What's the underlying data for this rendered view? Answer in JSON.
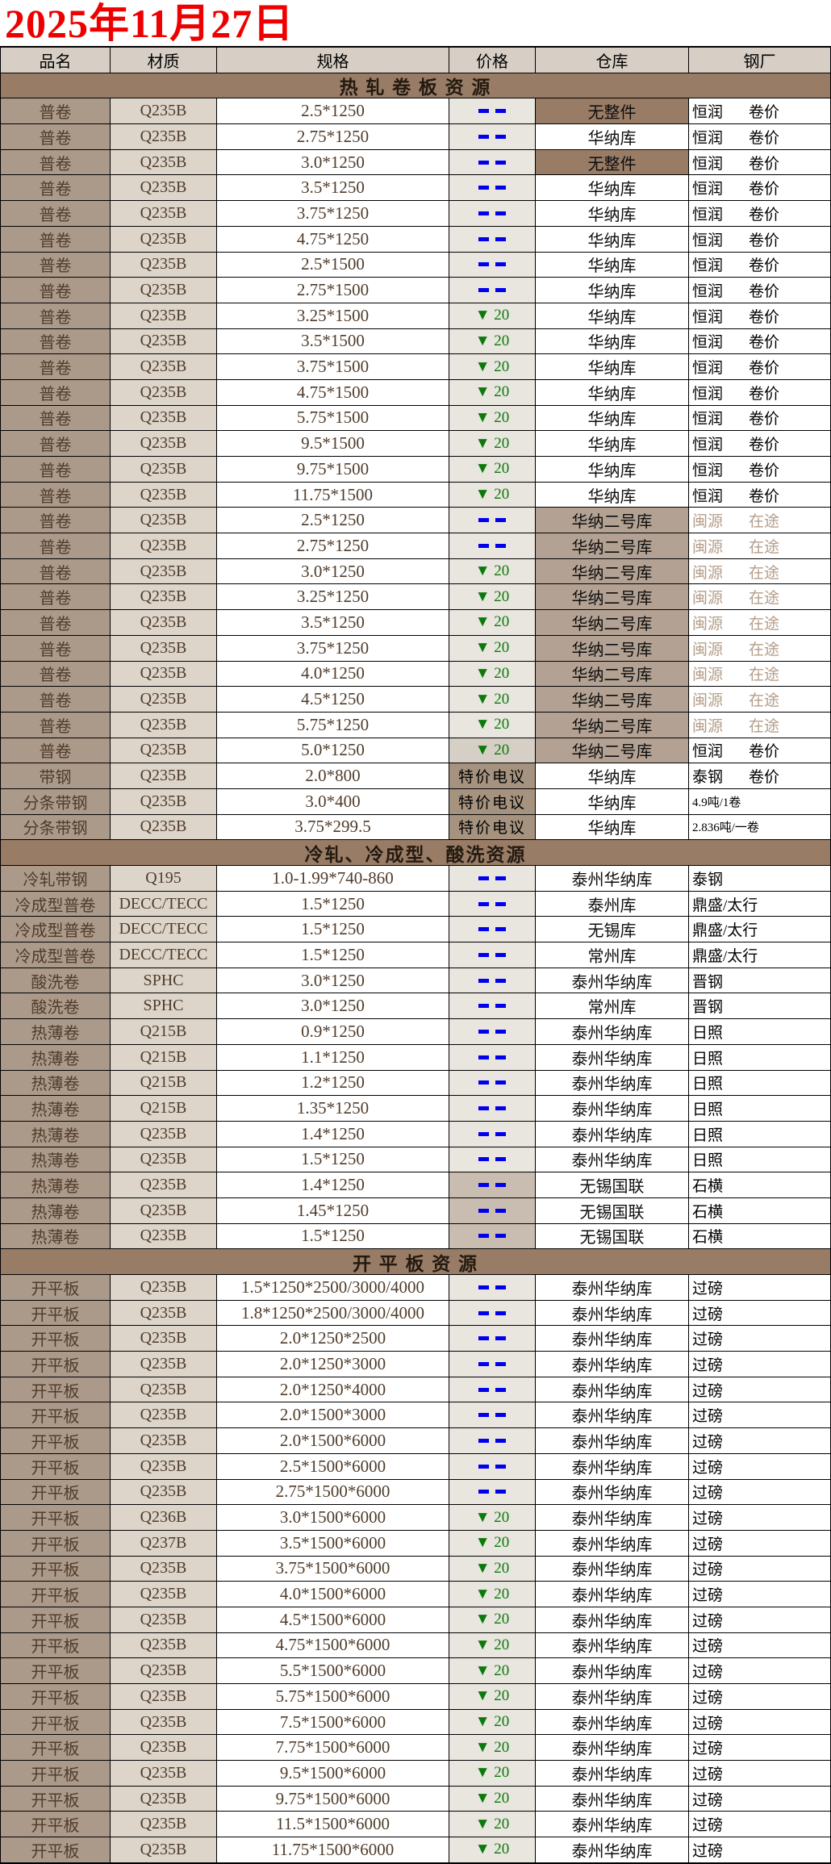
{
  "title": "2025年11月27日",
  "columns": [
    "品名",
    "材质",
    "规格",
    "价格",
    "仓库",
    "钢厂"
  ],
  "colors": {
    "title_red": "#ee0000",
    "border": "#000000",
    "header_bg": "#d7cfc5",
    "section_bg": "#997c66",
    "name_bg": "#ab998a",
    "mat_bg": "#ddd5ca",
    "spec_bg": "#ffffff",
    "price_light": "#e9e5df",
    "price_tan": "#c9bcb0",
    "price_tan2": "#d6cfc6",
    "price_brown": "#a6937f",
    "wh_white": "#ffffff",
    "wh_brown2": "#b3a293",
    "wh_dark": "#997c66",
    "text_brown": "#4f3c2b",
    "text_black": "#0d0d0d",
    "mill_black": "#000000",
    "mill_light": "#b49e8a",
    "price_blue": "#0000ee",
    "price_green": "#0a7a0a"
  },
  "row_fields": [
    "name",
    "material",
    "spec",
    "price_text",
    "price_style",
    "price_bg",
    "warehouse",
    "warehouse_bg",
    "mill",
    "mill_right",
    "mill_color",
    "mill_small"
  ],
  "sections": [
    {
      "header": "热 轧 卷 板 资 源",
      "rows": [
        [
          "普卷",
          "Q235B",
          "2.5*1250",
          "--",
          "dash",
          "light",
          "无整件",
          "dark",
          "恒润",
          "卷价",
          "black",
          0
        ],
        [
          "普卷",
          "Q235B",
          "2.75*1250",
          "--",
          "dash",
          "light",
          "华纳库",
          "white",
          "恒润",
          "卷价",
          "black",
          0
        ],
        [
          "普卷",
          "Q235B",
          "3.0*1250",
          "--",
          "dash",
          "light",
          "无整件",
          "dark",
          "恒润",
          "卷价",
          "black",
          0
        ],
        [
          "普卷",
          "Q235B",
          "3.5*1250",
          "--",
          "dash",
          "light",
          "华纳库",
          "white",
          "恒润",
          "卷价",
          "black",
          0
        ],
        [
          "普卷",
          "Q235B",
          "3.75*1250",
          "--",
          "dash",
          "light",
          "华纳库",
          "white",
          "恒润",
          "卷价",
          "black",
          0
        ],
        [
          "普卷",
          "Q235B",
          "4.75*1250",
          "--",
          "dash",
          "light",
          "华纳库",
          "white",
          "恒润",
          "卷价",
          "black",
          0
        ],
        [
          "普卷",
          "Q235B",
          "2.5*1500",
          "--",
          "dash",
          "light",
          "华纳库",
          "white",
          "恒润",
          "卷价",
          "black",
          0
        ],
        [
          "普卷",
          "Q235B",
          "2.75*1500",
          "--",
          "dash",
          "light",
          "华纳库",
          "white",
          "恒润",
          "卷价",
          "black",
          0
        ],
        [
          "普卷",
          "Q235B",
          "3.25*1500",
          "▼ 20",
          "down",
          "light",
          "华纳库",
          "white",
          "恒润",
          "卷价",
          "black",
          0
        ],
        [
          "普卷",
          "Q235B",
          "3.5*1500",
          "▼ 20",
          "down",
          "light",
          "华纳库",
          "white",
          "恒润",
          "卷价",
          "black",
          0
        ],
        [
          "普卷",
          "Q235B",
          "3.75*1500",
          "▼ 20",
          "down",
          "light",
          "华纳库",
          "white",
          "恒润",
          "卷价",
          "black",
          0
        ],
        [
          "普卷",
          "Q235B",
          "4.75*1500",
          "▼ 20",
          "down",
          "light",
          "华纳库",
          "white",
          "恒润",
          "卷价",
          "black",
          0
        ],
        [
          "普卷",
          "Q235B",
          "5.75*1500",
          "▼ 20",
          "down",
          "light",
          "华纳库",
          "white",
          "恒润",
          "卷价",
          "black",
          0
        ],
        [
          "普卷",
          "Q235B",
          "9.5*1500",
          "▼ 20",
          "down",
          "light",
          "华纳库",
          "white",
          "恒润",
          "卷价",
          "black",
          0
        ],
        [
          "普卷",
          "Q235B",
          "9.75*1500",
          "▼ 20",
          "down",
          "light",
          "华纳库",
          "white",
          "恒润",
          "卷价",
          "black",
          0
        ],
        [
          "普卷",
          "Q235B",
          "11.75*1500",
          "▼ 20",
          "down",
          "light",
          "华纳库",
          "white",
          "恒润",
          "卷价",
          "black",
          0
        ],
        [
          "普卷",
          "Q235B",
          "2.5*1250",
          "--",
          "dash",
          "light",
          "华纳二号库",
          "brown2",
          "闽源",
          "在途",
          "light",
          0
        ],
        [
          "普卷",
          "Q235B",
          "2.75*1250",
          "--",
          "dash",
          "light",
          "华纳二号库",
          "brown2",
          "闽源",
          "在途",
          "light",
          0
        ],
        [
          "普卷",
          "Q235B",
          "3.0*1250",
          "▼ 20",
          "down",
          "light",
          "华纳二号库",
          "brown2",
          "闽源",
          "在途",
          "light",
          0
        ],
        [
          "普卷",
          "Q235B",
          "3.25*1250",
          "▼ 20",
          "down",
          "light",
          "华纳二号库",
          "brown2",
          "闽源",
          "在途",
          "light",
          0
        ],
        [
          "普卷",
          "Q235B",
          "3.5*1250",
          "▼ 20",
          "down",
          "light",
          "华纳二号库",
          "brown2",
          "闽源",
          "在途",
          "light",
          0
        ],
        [
          "普卷",
          "Q235B",
          "3.75*1250",
          "▼ 20",
          "down",
          "light",
          "华纳二号库",
          "brown2",
          "闽源",
          "在途",
          "light",
          0
        ],
        [
          "普卷",
          "Q235B",
          "4.0*1250",
          "▼ 20",
          "down",
          "light",
          "华纳二号库",
          "brown2",
          "闽源",
          "在途",
          "light",
          0
        ],
        [
          "普卷",
          "Q235B",
          "4.5*1250",
          "▼ 20",
          "down",
          "light",
          "华纳二号库",
          "brown2",
          "闽源",
          "在途",
          "light",
          0
        ],
        [
          "普卷",
          "Q235B",
          "5.75*1250",
          "▼ 20",
          "down",
          "light",
          "华纳二号库",
          "brown2",
          "闽源",
          "在途",
          "light",
          0
        ],
        [
          "普卷",
          "Q235B",
          "5.0*1250",
          "▼ 20",
          "down",
          "tan2",
          "华纳二号库",
          "brown2",
          "恒润",
          "卷价",
          "black",
          0
        ],
        [
          "带钢",
          "Q235B",
          "2.0*800",
          "特价电议",
          "call",
          "brown",
          "华纳库",
          "white",
          "泰钢",
          "卷价",
          "black",
          0
        ],
        [
          "分条带钢",
          "Q235B",
          "3.0*400",
          "特价电议",
          "call",
          "brown",
          "华纳库",
          "white",
          "4.9吨/1卷",
          "",
          "black",
          1
        ],
        [
          "分条带钢",
          "Q235B",
          "3.75*299.5",
          "特价电议",
          "call",
          "brown",
          "华纳库",
          "white",
          "2.836吨/一卷",
          "",
          "black",
          1
        ]
      ]
    },
    {
      "header": "冷轧、冷成型、酸洗资源",
      "rows": [
        [
          "冷轧带钢",
          "Q195",
          "1.0-1.99*740-860",
          "--",
          "dash",
          "light",
          "泰州华纳库",
          "white",
          "泰钢",
          "",
          "black",
          0
        ],
        [
          "冷成型普卷",
          "DECC/TECC",
          "1.5*1250",
          "--",
          "dash",
          "light",
          "泰州库",
          "white",
          "鼎盛/太行",
          "",
          "black",
          0
        ],
        [
          "冷成型普卷",
          "DECC/TECC",
          "1.5*1250",
          "--",
          "dash",
          "light",
          "无锡库",
          "white",
          "鼎盛/太行",
          "",
          "black",
          0
        ],
        [
          "冷成型普卷",
          "DECC/TECC",
          "1.5*1250",
          "--",
          "dash",
          "light",
          "常州库",
          "white",
          "鼎盛/太行",
          "",
          "black",
          0
        ],
        [
          "酸洗卷",
          "SPHC",
          "3.0*1250",
          "--",
          "dash",
          "light",
          "泰州华纳库",
          "white",
          "晋钢",
          "",
          "black",
          0
        ],
        [
          "酸洗卷",
          "SPHC",
          "3.0*1250",
          "--",
          "dash",
          "light",
          "常州库",
          "white",
          "晋钢",
          "",
          "black",
          0
        ],
        [
          "热薄卷",
          "Q215B",
          "0.9*1250",
          "--",
          "dash",
          "light",
          "泰州华纳库",
          "white",
          "日照",
          "",
          "black",
          0
        ],
        [
          "热薄卷",
          "Q215B",
          "1.1*1250",
          "--",
          "dash",
          "light",
          "泰州华纳库",
          "white",
          "日照",
          "",
          "black",
          0
        ],
        [
          "热薄卷",
          "Q215B",
          "1.2*1250",
          "--",
          "dash",
          "light",
          "泰州华纳库",
          "white",
          "日照",
          "",
          "black",
          0
        ],
        [
          "热薄卷",
          "Q215B",
          "1.35*1250",
          "--",
          "dash",
          "light",
          "泰州华纳库",
          "white",
          "日照",
          "",
          "black",
          0
        ],
        [
          "热薄卷",
          "Q235B",
          "1.4*1250",
          "--",
          "dash",
          "light",
          "泰州华纳库",
          "white",
          "日照",
          "",
          "black",
          0
        ],
        [
          "热薄卷",
          "Q235B",
          "1.5*1250",
          "--",
          "dash",
          "light",
          "泰州华纳库",
          "white",
          "日照",
          "",
          "black",
          0
        ],
        [
          "热薄卷",
          "Q235B",
          "1.4*1250",
          "--",
          "dash",
          "tan",
          "无锡国联",
          "white",
          "石横",
          "",
          "black",
          0
        ],
        [
          "热薄卷",
          "Q235B",
          "1.45*1250",
          "--",
          "dash",
          "tan",
          "无锡国联",
          "white",
          "石横",
          "",
          "black",
          0
        ],
        [
          "热薄卷",
          "Q235B",
          "1.5*1250",
          "--",
          "dash",
          "tan",
          "无锡国联",
          "white",
          "石横",
          "",
          "black",
          0
        ]
      ]
    },
    {
      "header": "开 平 板 资 源",
      "rows": [
        [
          "开平板",
          "Q235B",
          "1.5*1250*2500/3000/4000",
          "--",
          "dash",
          "light",
          "泰州华纳库",
          "white",
          "过磅",
          "",
          "black",
          0
        ],
        [
          "开平板",
          "Q235B",
          "1.8*1250*2500/3000/4000",
          "--",
          "dash",
          "light",
          "泰州华纳库",
          "white",
          "过磅",
          "",
          "black",
          0
        ],
        [
          "开平板",
          "Q235B",
          "2.0*1250*2500",
          "--",
          "dash",
          "light",
          "泰州华纳库",
          "white",
          "过磅",
          "",
          "black",
          0
        ],
        [
          "开平板",
          "Q235B",
          "2.0*1250*3000",
          "--",
          "dash",
          "light",
          "泰州华纳库",
          "white",
          "过磅",
          "",
          "black",
          0
        ],
        [
          "开平板",
          "Q235B",
          "2.0*1250*4000",
          "--",
          "dash",
          "light",
          "泰州华纳库",
          "white",
          "过磅",
          "",
          "black",
          0
        ],
        [
          "开平板",
          "Q235B",
          "2.0*1500*3000",
          "--",
          "dash",
          "light",
          "泰州华纳库",
          "white",
          "过磅",
          "",
          "black",
          0
        ],
        [
          "开平板",
          "Q235B",
          "2.0*1500*6000",
          "--",
          "dash",
          "light",
          "泰州华纳库",
          "white",
          "过磅",
          "",
          "black",
          0
        ],
        [
          "开平板",
          "Q235B",
          "2.5*1500*6000",
          "--",
          "dash",
          "light",
          "泰州华纳库",
          "white",
          "过磅",
          "",
          "black",
          0
        ],
        [
          "开平板",
          "Q235B",
          "2.75*1500*6000",
          "--",
          "dash",
          "light",
          "泰州华纳库",
          "white",
          "过磅",
          "",
          "black",
          0
        ],
        [
          "开平板",
          "Q236B",
          "3.0*1500*6000",
          "▼ 20",
          "down",
          "light",
          "泰州华纳库",
          "white",
          "过磅",
          "",
          "black",
          0
        ],
        [
          "开平板",
          "Q237B",
          "3.5*1500*6000",
          "▼ 20",
          "down",
          "light",
          "泰州华纳库",
          "white",
          "过磅",
          "",
          "black",
          0
        ],
        [
          "开平板",
          "Q235B",
          "3.75*1500*6000",
          "▼ 20",
          "down",
          "light",
          "泰州华纳库",
          "white",
          "过磅",
          "",
          "black",
          0
        ],
        [
          "开平板",
          "Q235B",
          "4.0*1500*6000",
          "▼ 20",
          "down",
          "light",
          "泰州华纳库",
          "white",
          "过磅",
          "",
          "black",
          0
        ],
        [
          "开平板",
          "Q235B",
          "4.5*1500*6000",
          "▼ 20",
          "down",
          "light",
          "泰州华纳库",
          "white",
          "过磅",
          "",
          "black",
          0
        ],
        [
          "开平板",
          "Q235B",
          "4.75*1500*6000",
          "▼ 20",
          "down",
          "light",
          "泰州华纳库",
          "white",
          "过磅",
          "",
          "black",
          0
        ],
        [
          "开平板",
          "Q235B",
          "5.5*1500*6000",
          "▼ 20",
          "down",
          "light",
          "泰州华纳库",
          "white",
          "过磅",
          "",
          "black",
          0
        ],
        [
          "开平板",
          "Q235B",
          "5.75*1500*6000",
          "▼ 20",
          "down",
          "light",
          "泰州华纳库",
          "white",
          "过磅",
          "",
          "black",
          0
        ],
        [
          "开平板",
          "Q235B",
          "7.5*1500*6000",
          "▼ 20",
          "down",
          "light",
          "泰州华纳库",
          "white",
          "过磅",
          "",
          "black",
          0
        ],
        [
          "开平板",
          "Q235B",
          "7.75*1500*6000",
          "▼ 20",
          "down",
          "light",
          "泰州华纳库",
          "white",
          "过磅",
          "",
          "black",
          0
        ],
        [
          "开平板",
          "Q235B",
          "9.5*1500*6000",
          "▼ 20",
          "down",
          "light",
          "泰州华纳库",
          "white",
          "过磅",
          "",
          "black",
          0
        ],
        [
          "开平板",
          "Q235B",
          "9.75*1500*6000",
          "▼ 20",
          "down",
          "light",
          "泰州华纳库",
          "white",
          "过磅",
          "",
          "black",
          0
        ],
        [
          "开平板",
          "Q235B",
          "11.5*1500*6000",
          "▼ 20",
          "down",
          "light",
          "泰州华纳库",
          "white",
          "过磅",
          "",
          "black",
          0
        ],
        [
          "开平板",
          "Q235B",
          "11.75*1500*6000",
          "▼ 20",
          "down",
          "light",
          "泰州华纳库",
          "white",
          "过磅",
          "",
          "black",
          0
        ]
      ]
    }
  ]
}
